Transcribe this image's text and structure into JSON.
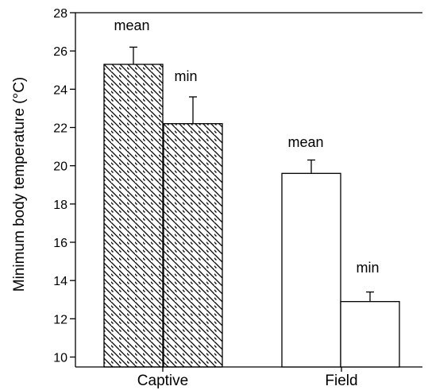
{
  "chart_data": {
    "type": "bar",
    "title": "",
    "xlabel": "",
    "ylabel": "Minimum body temperature (°C)",
    "ylim": [
      9.5,
      28
    ],
    "yticks": [
      10,
      12,
      14,
      16,
      18,
      20,
      22,
      24,
      26,
      28
    ],
    "categories": [
      "Captive",
      "Field"
    ],
    "bars": [
      {
        "group": "Captive",
        "label": "mean",
        "value": 25.3,
        "error": 0.9,
        "fill": "hatched"
      },
      {
        "group": "Captive",
        "label": "min",
        "value": 22.2,
        "error": 1.4,
        "fill": "hatched"
      },
      {
        "group": "Field",
        "label": "mean",
        "value": 19.6,
        "error": 0.7,
        "fill": "white"
      },
      {
        "group": "Field",
        "label": "min",
        "value": 12.9,
        "error": 0.5,
        "fill": "white"
      }
    ],
    "grid": false,
    "legend": "none",
    "colors": {
      "stroke": "#000000",
      "background": "#ffffff"
    }
  }
}
